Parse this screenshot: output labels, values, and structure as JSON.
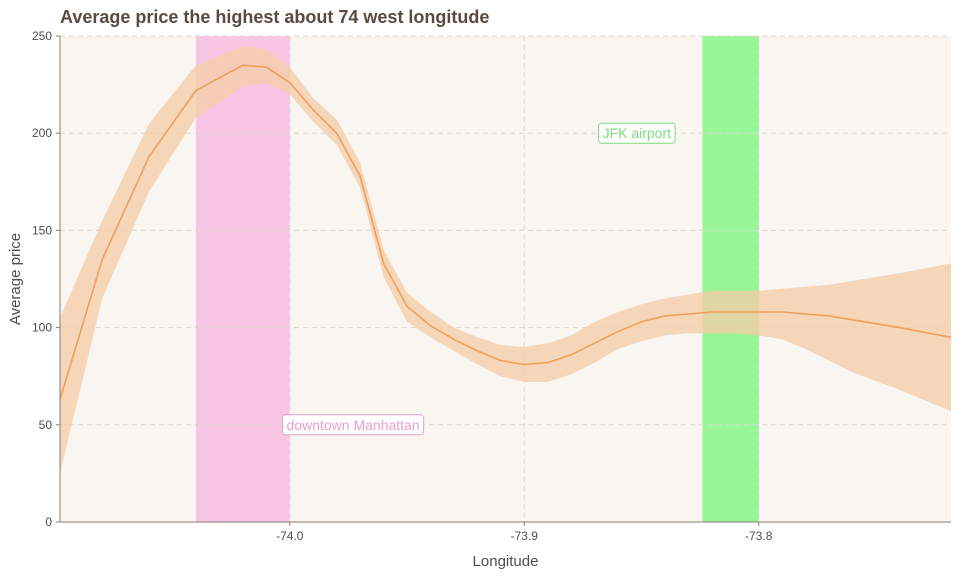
{
  "colors": {
    "panel_bg": "#f9f5f1",
    "grid": "#dcd6d0",
    "line": "#ef9f5c",
    "ribbon": "#f5cda8",
    "band_manhattan": "#f7c6e4",
    "band_jfk": "#98f598",
    "label_manhattan": "#e6a0c8",
    "label_jfk": "#7ddc7d",
    "axis": "#8a7a70"
  },
  "chart_data": {
    "type": "line",
    "title": "Average price the highest about 74 west longitude",
    "xlabel": "Longitude",
    "ylabel": "Average price",
    "xlim": [
      -74.098,
      -73.718
    ],
    "ylim": [
      0,
      250
    ],
    "x_ticks": [
      -74.0,
      -73.9,
      -73.8
    ],
    "x_tick_labels": [
      "-74.0",
      "-73.9",
      "-73.8"
    ],
    "y_ticks": [
      0,
      50,
      100,
      150,
      200,
      250
    ],
    "y_tick_labels": [
      "0",
      "50",
      "100",
      "150",
      "200",
      "250"
    ],
    "grid": true,
    "series": [
      {
        "x": [
          -74.098,
          -74.08,
          -74.06,
          -74.04,
          -74.02,
          -74.01,
          -74.0,
          -73.99,
          -73.98,
          -73.97,
          -73.96,
          -73.95,
          -73.94,
          -73.93,
          -73.92,
          -73.91,
          -73.9,
          -73.89,
          -73.88,
          -73.87,
          -73.86,
          -73.85,
          -73.84,
          -73.83,
          -73.82,
          -73.81,
          -73.8,
          -73.79,
          -73.78,
          -73.77,
          -73.76,
          -73.74,
          -73.718
        ],
        "y": [
          63,
          135,
          188,
          222,
          235,
          234,
          226,
          212,
          200,
          178,
          133,
          111,
          101,
          94,
          88,
          83,
          81,
          82,
          86,
          92,
          98,
          103,
          106,
          107,
          108,
          108,
          108,
          108,
          107,
          106,
          104,
          100,
          95
        ],
        "ci_low": [
          25,
          115,
          170,
          208,
          224,
          226,
          220,
          206,
          194,
          172,
          126,
          103,
          95,
          88,
          81,
          75,
          72,
          72,
          76,
          82,
          89,
          93,
          96,
          97,
          97,
          97,
          96,
          94,
          89,
          83,
          77,
          68,
          57
        ],
        "ci_high": [
          105,
          155,
          205,
          235,
          245,
          243,
          234,
          218,
          207,
          185,
          140,
          118,
          108,
          100,
          95,
          91,
          90,
          92,
          96,
          103,
          108,
          112,
          115,
          117,
          119,
          119,
          119,
          120,
          121,
          122,
          124,
          128,
          133
        ]
      }
    ],
    "bands": [
      {
        "name": "downtown Manhattan",
        "xmin": -74.04,
        "xmax": -74.0
      },
      {
        "name": "JFK airport",
        "xmin": -73.824,
        "xmax": -73.8
      }
    ],
    "annotations": [
      {
        "label": "downtown Manhattan",
        "x": -73.973,
        "y": 50
      },
      {
        "label": "JFK airport",
        "x": -73.852,
        "y": 200
      }
    ]
  }
}
